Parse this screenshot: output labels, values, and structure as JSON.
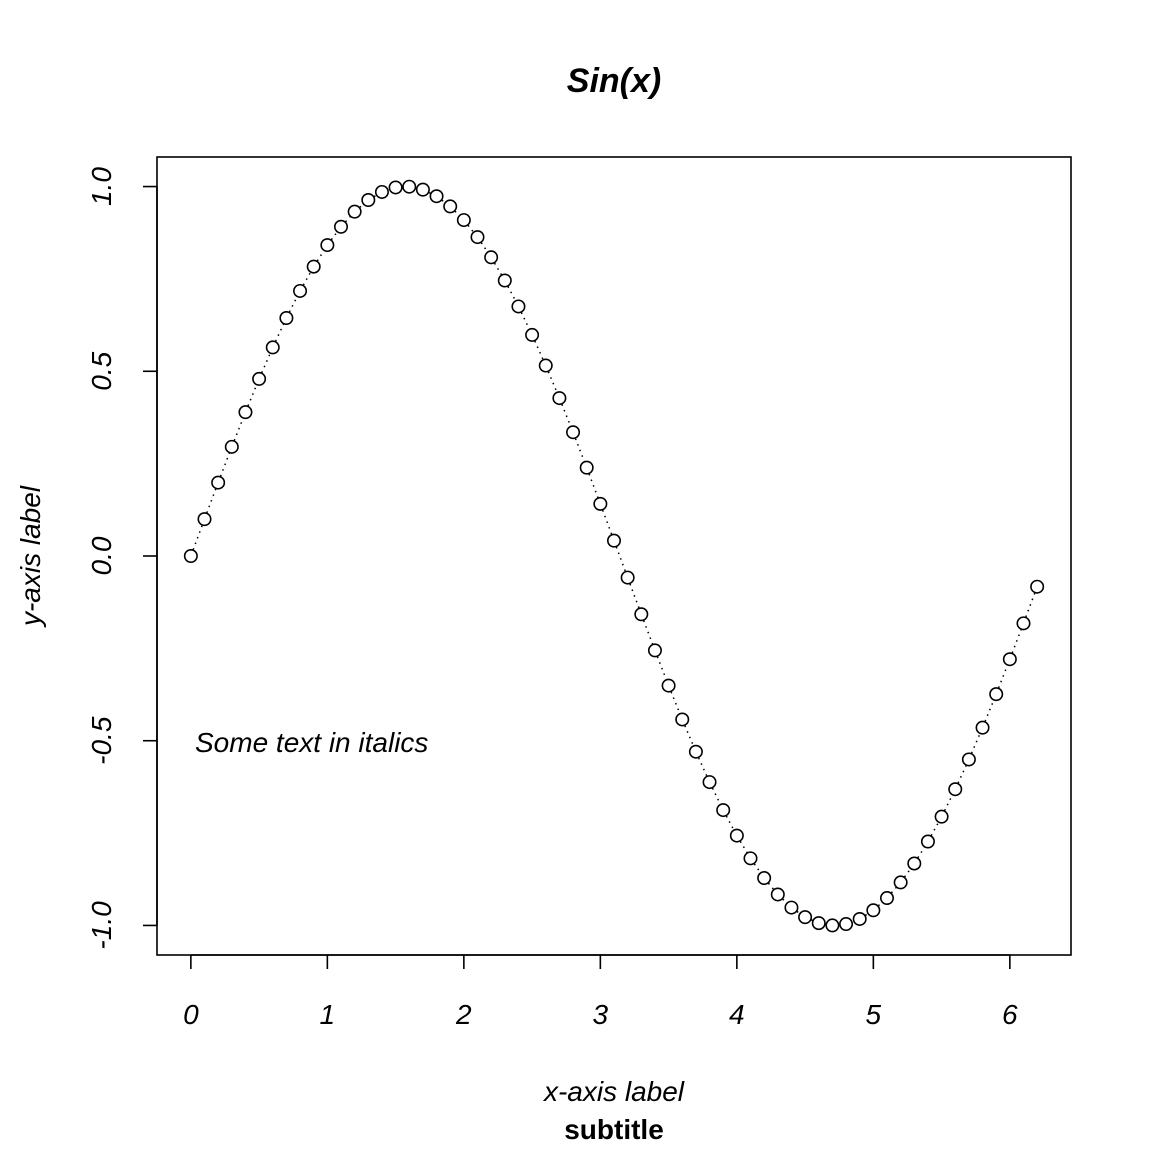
{
  "chart_data": {
    "type": "scatter",
    "title": "Sin(x)",
    "subtitle": "subtitle",
    "xlabel": "x-axis label",
    "ylabel": "y-axis label",
    "xlim": [
      -0.248,
      6.448
    ],
    "ylim": [
      -1.08,
      1.08
    ],
    "x_ticks": [
      0,
      1,
      2,
      3,
      4,
      5,
      6
    ],
    "x_tick_labels": [
      "0",
      "1",
      "2",
      "3",
      "4",
      "5",
      "6"
    ],
    "y_ticks": [
      -1.0,
      -0.5,
      0.0,
      0.5,
      1.0
    ],
    "y_tick_labels": [
      "-1.0",
      "-0.5",
      "0.0",
      "0.5",
      "1.0"
    ],
    "grid": false,
    "marker": "open-circle",
    "connector": "dotted",
    "annotation": {
      "text": "Some text in italics",
      "x": 0.03,
      "y": -0.5
    },
    "x": [
      0.0,
      0.1,
      0.2,
      0.3,
      0.4,
      0.5,
      0.6,
      0.7,
      0.8,
      0.9,
      1.0,
      1.1,
      1.2,
      1.3,
      1.4,
      1.5,
      1.6,
      1.7,
      1.8,
      1.9,
      2.0,
      2.1,
      2.2,
      2.3,
      2.4,
      2.5,
      2.6,
      2.7,
      2.8,
      2.9,
      3.0,
      3.1,
      3.2,
      3.3,
      3.4,
      3.5,
      3.6,
      3.7,
      3.8,
      3.9,
      4.0,
      4.1,
      4.2,
      4.3,
      4.4,
      4.5,
      4.6,
      4.7,
      4.8,
      4.9,
      5.0,
      5.1,
      5.2,
      5.3,
      5.4,
      5.5,
      5.6,
      5.7,
      5.8,
      5.9,
      6.0,
      6.1,
      6.2
    ],
    "y": [
      0.0,
      0.0998,
      0.1987,
      0.2955,
      0.3894,
      0.4794,
      0.5646,
      0.6442,
      0.7174,
      0.7833,
      0.8415,
      0.8912,
      0.932,
      0.9636,
      0.9854,
      0.9975,
      0.9996,
      0.9917,
      0.9738,
      0.9463,
      0.9093,
      0.8632,
      0.8085,
      0.7457,
      0.6755,
      0.5985,
      0.5155,
      0.4274,
      0.335,
      0.2392,
      0.1411,
      0.0416,
      -0.0584,
      -0.1577,
      -0.2555,
      -0.3508,
      -0.4425,
      -0.5298,
      -0.6119,
      -0.6878,
      -0.7568,
      -0.8183,
      -0.8716,
      -0.9162,
      -0.9516,
      -0.9775,
      -0.9937,
      -0.9999,
      -0.9962,
      -0.9825,
      -0.9589,
      -0.9258,
      -0.8835,
      -0.8323,
      -0.7728,
      -0.7055,
      -0.6313,
      -0.5507,
      -0.4646,
      -0.3739,
      -0.2794,
      -0.1822,
      -0.0831
    ]
  }
}
